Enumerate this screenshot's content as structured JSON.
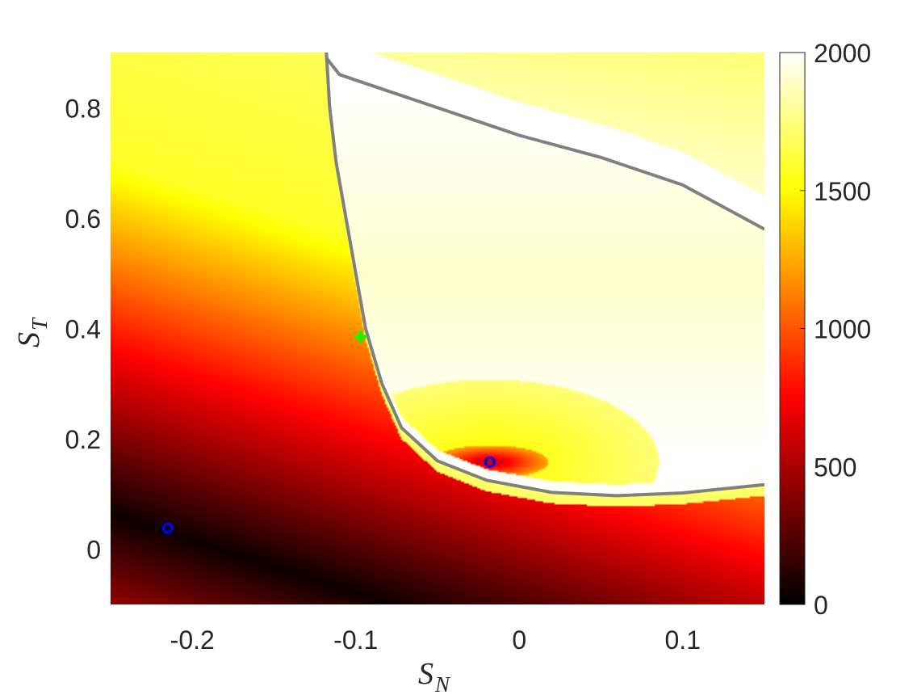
{
  "chart_data": {
    "type": "heatmap",
    "title": "",
    "xlabel": {
      "main": "S",
      "sub": "N"
    },
    "ylabel": {
      "main": "S",
      "sub": "T"
    },
    "xlim": [
      -0.25,
      0.15
    ],
    "ylim": [
      -0.1,
      0.9
    ],
    "x_ticks": [
      -0.2,
      -0.1,
      0,
      0.1
    ],
    "x_tick_labels": [
      "-0.2",
      "-0.1",
      "0",
      "0.1"
    ],
    "y_ticks": [
      0,
      0.2,
      0.4,
      0.6,
      0.8
    ],
    "y_tick_labels": [
      "0",
      "0.2",
      "0.4",
      "0.6",
      "0.8"
    ],
    "colorbar": {
      "limits": [
        0,
        2000
      ],
      "ticks": [
        0,
        500,
        1000,
        1500,
        2000
      ],
      "tick_labels": [
        "0",
        "500",
        "1000",
        "1500",
        "2000"
      ],
      "colormap": "hot"
    },
    "colormap_stops": [
      {
        "t": 0.0,
        "color": "#000000"
      },
      {
        "t": 0.375,
        "color": "#ff0000"
      },
      {
        "t": 0.75,
        "color": "#ffff00"
      },
      {
        "t": 1.0,
        "color": "#ffffff"
      }
    ],
    "boundary_curves": [
      {
        "color": "#808080",
        "points": [
          [
            -0.118,
            0.9
          ],
          [
            -0.116,
            0.8
          ],
          [
            -0.112,
            0.7
          ],
          [
            -0.106,
            0.6
          ],
          [
            -0.1,
            0.5
          ],
          [
            -0.094,
            0.4
          ],
          [
            -0.084,
            0.3
          ],
          [
            -0.072,
            0.22
          ],
          [
            -0.05,
            0.16
          ],
          [
            -0.02,
            0.125
          ],
          [
            0.02,
            0.103
          ],
          [
            0.06,
            0.097
          ],
          [
            0.1,
            0.102
          ],
          [
            0.15,
            0.117
          ]
        ]
      },
      {
        "color": "#808080",
        "points": [
          [
            -0.118,
            0.89
          ],
          [
            -0.11,
            0.86
          ],
          [
            -0.08,
            0.83
          ],
          [
            -0.04,
            0.79
          ],
          [
            0.0,
            0.75
          ],
          [
            0.05,
            0.71
          ],
          [
            0.1,
            0.66
          ],
          [
            0.15,
            0.58
          ]
        ]
      }
    ],
    "markers": [
      {
        "shape": "circle",
        "color": "#0000ff",
        "x": -0.215,
        "y": 0.038
      },
      {
        "shape": "circle",
        "color": "#0000ff",
        "x": -0.018,
        "y": 0.158
      },
      {
        "shape": "plus",
        "color": "#00ff00",
        "x": -0.097,
        "y": 0.385
      }
    ]
  }
}
